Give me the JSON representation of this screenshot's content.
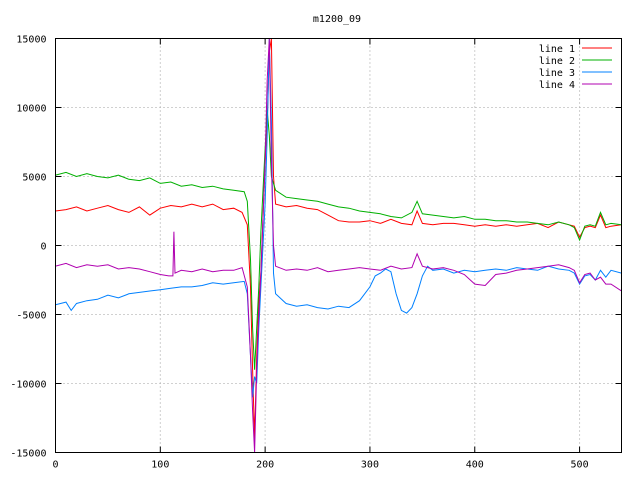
{
  "chart_data": {
    "type": "line",
    "title": "m1200_09",
    "xlabel": "",
    "ylabel": "",
    "xlim": [
      0,
      540
    ],
    "ylim": [
      -15000,
      15000
    ],
    "xticks": [
      0,
      100,
      200,
      300,
      400,
      500
    ],
    "yticks": [
      -15000,
      -10000,
      -5000,
      0,
      5000,
      10000,
      15000
    ],
    "grid": true,
    "legend_position": "top-right",
    "series": [
      {
        "name": "line 1",
        "color": "#ff0000",
        "points": [
          [
            0,
            2500
          ],
          [
            10,
            2600
          ],
          [
            20,
            2800
          ],
          [
            30,
            2500
          ],
          [
            40,
            2700
          ],
          [
            50,
            2900
          ],
          [
            60,
            2600
          ],
          [
            70,
            2400
          ],
          [
            80,
            2800
          ],
          [
            90,
            2200
          ],
          [
            100,
            2700
          ],
          [
            110,
            2900
          ],
          [
            120,
            2800
          ],
          [
            130,
            3000
          ],
          [
            140,
            2800
          ],
          [
            150,
            3000
          ],
          [
            160,
            2600
          ],
          [
            170,
            2700
          ],
          [
            178,
            2400
          ],
          [
            183,
            1500
          ],
          [
            186,
            -3000
          ],
          [
            188,
            -9000
          ],
          [
            190,
            -14000
          ],
          [
            192,
            -8000
          ],
          [
            194,
            -4000
          ],
          [
            196,
            -2000
          ],
          [
            198,
            2000
          ],
          [
            200,
            6000
          ],
          [
            202,
            9000
          ],
          [
            204,
            14000
          ],
          [
            206,
            15000
          ],
          [
            208,
            5000
          ],
          [
            210,
            3000
          ],
          [
            220,
            2800
          ],
          [
            230,
            2900
          ],
          [
            240,
            2700
          ],
          [
            250,
            2600
          ],
          [
            260,
            2200
          ],
          [
            270,
            1800
          ],
          [
            280,
            1700
          ],
          [
            290,
            1700
          ],
          [
            300,
            1800
          ],
          [
            310,
            1600
          ],
          [
            320,
            1900
          ],
          [
            330,
            1600
          ],
          [
            340,
            1500
          ],
          [
            345,
            2500
          ],
          [
            350,
            1600
          ],
          [
            360,
            1500
          ],
          [
            370,
            1600
          ],
          [
            380,
            1600
          ],
          [
            390,
            1500
          ],
          [
            400,
            1400
          ],
          [
            410,
            1500
          ],
          [
            420,
            1400
          ],
          [
            430,
            1500
          ],
          [
            440,
            1400
          ],
          [
            450,
            1500
          ],
          [
            460,
            1600
          ],
          [
            470,
            1300
          ],
          [
            480,
            1700
          ],
          [
            490,
            1500
          ],
          [
            495,
            1400
          ],
          [
            500,
            600
          ],
          [
            505,
            1300
          ],
          [
            510,
            1400
          ],
          [
            515,
            1300
          ],
          [
            520,
            2200
          ],
          [
            525,
            1300
          ],
          [
            530,
            1400
          ],
          [
            540,
            1500
          ]
        ]
      },
      {
        "name": "line 2",
        "color": "#00b000",
        "points": [
          [
            0,
            5100
          ],
          [
            10,
            5300
          ],
          [
            20,
            5000
          ],
          [
            30,
            5200
          ],
          [
            40,
            5000
          ],
          [
            50,
            4900
          ],
          [
            60,
            5100
          ],
          [
            70,
            4800
          ],
          [
            80,
            4700
          ],
          [
            90,
            4900
          ],
          [
            100,
            4500
          ],
          [
            110,
            4600
          ],
          [
            120,
            4300
          ],
          [
            130,
            4400
          ],
          [
            140,
            4200
          ],
          [
            150,
            4300
          ],
          [
            160,
            4100
          ],
          [
            170,
            4000
          ],
          [
            180,
            3900
          ],
          [
            183,
            3200
          ],
          [
            186,
            -1000
          ],
          [
            188,
            -6000
          ],
          [
            190,
            -9000
          ],
          [
            192,
            -6000
          ],
          [
            194,
            -3000
          ],
          [
            196,
            1000
          ],
          [
            198,
            4000
          ],
          [
            200,
            7000
          ],
          [
            202,
            9800
          ],
          [
            204,
            8000
          ],
          [
            206,
            5000
          ],
          [
            210,
            4000
          ],
          [
            220,
            3500
          ],
          [
            230,
            3400
          ],
          [
            240,
            3300
          ],
          [
            250,
            3200
          ],
          [
            260,
            3000
          ],
          [
            270,
            2800
          ],
          [
            280,
            2700
          ],
          [
            290,
            2500
          ],
          [
            300,
            2400
          ],
          [
            310,
            2300
          ],
          [
            320,
            2100
          ],
          [
            330,
            2000
          ],
          [
            340,
            2400
          ],
          [
            345,
            3200
          ],
          [
            350,
            2300
          ],
          [
            360,
            2200
          ],
          [
            370,
            2100
          ],
          [
            380,
            2000
          ],
          [
            390,
            2100
          ],
          [
            400,
            1900
          ],
          [
            410,
            1900
          ],
          [
            420,
            1800
          ],
          [
            430,
            1800
          ],
          [
            440,
            1700
          ],
          [
            450,
            1700
          ],
          [
            460,
            1600
          ],
          [
            470,
            1500
          ],
          [
            480,
            1700
          ],
          [
            490,
            1500
          ],
          [
            495,
            1300
          ],
          [
            500,
            400
          ],
          [
            505,
            1400
          ],
          [
            510,
            1500
          ],
          [
            515,
            1400
          ],
          [
            520,
            2400
          ],
          [
            525,
            1500
          ],
          [
            530,
            1600
          ],
          [
            540,
            1500
          ]
        ]
      },
      {
        "name": "line 3",
        "color": "#0080ff",
        "points": [
          [
            0,
            -4300
          ],
          [
            10,
            -4100
          ],
          [
            15,
            -4700
          ],
          [
            20,
            -4200
          ],
          [
            30,
            -4000
          ],
          [
            40,
            -3900
          ],
          [
            50,
            -3600
          ],
          [
            60,
            -3800
          ],
          [
            70,
            -3500
          ],
          [
            80,
            -3400
          ],
          [
            90,
            -3300
          ],
          [
            100,
            -3200
          ],
          [
            110,
            -3100
          ],
          [
            120,
            -3000
          ],
          [
            130,
            -3000
          ],
          [
            140,
            -2900
          ],
          [
            150,
            -2700
          ],
          [
            160,
            -2800
          ],
          [
            170,
            -2700
          ],
          [
            180,
            -2600
          ],
          [
            183,
            -3500
          ],
          [
            186,
            -8000
          ],
          [
            188,
            -11000
          ],
          [
            190,
            -9500
          ],
          [
            192,
            -10000
          ],
          [
            194,
            -6000
          ],
          [
            196,
            -3000
          ],
          [
            198,
            0
          ],
          [
            200,
            3000
          ],
          [
            202,
            8000
          ],
          [
            204,
            15000
          ],
          [
            206,
            9000
          ],
          [
            208,
            -2000
          ],
          [
            210,
            -3500
          ],
          [
            220,
            -4200
          ],
          [
            230,
            -4400
          ],
          [
            240,
            -4300
          ],
          [
            250,
            -4500
          ],
          [
            260,
            -4600
          ],
          [
            270,
            -4400
          ],
          [
            280,
            -4500
          ],
          [
            290,
            -4000
          ],
          [
            300,
            -3000
          ],
          [
            305,
            -2200
          ],
          [
            310,
            -2000
          ],
          [
            315,
            -1700
          ],
          [
            320,
            -1900
          ],
          [
            325,
            -3500
          ],
          [
            330,
            -4700
          ],
          [
            335,
            -4900
          ],
          [
            340,
            -4500
          ],
          [
            345,
            -3500
          ],
          [
            350,
            -2200
          ],
          [
            355,
            -1500
          ],
          [
            360,
            -1800
          ],
          [
            370,
            -1700
          ],
          [
            380,
            -2000
          ],
          [
            390,
            -1800
          ],
          [
            400,
            -1900
          ],
          [
            410,
            -1800
          ],
          [
            420,
            -1700
          ],
          [
            430,
            -1800
          ],
          [
            440,
            -1600
          ],
          [
            450,
            -1700
          ],
          [
            460,
            -1800
          ],
          [
            470,
            -1500
          ],
          [
            480,
            -1700
          ],
          [
            490,
            -1800
          ],
          [
            495,
            -2000
          ],
          [
            500,
            -2800
          ],
          [
            505,
            -2200
          ],
          [
            510,
            -2100
          ],
          [
            515,
            -2500
          ],
          [
            520,
            -1800
          ],
          [
            525,
            -2300
          ],
          [
            530,
            -1800
          ],
          [
            540,
            -2000
          ]
        ]
      },
      {
        "name": "line 4",
        "color": "#b000b0",
        "points": [
          [
            0,
            -1500
          ],
          [
            10,
            -1300
          ],
          [
            20,
            -1600
          ],
          [
            30,
            -1400
          ],
          [
            40,
            -1500
          ],
          [
            50,
            -1400
          ],
          [
            60,
            -1700
          ],
          [
            70,
            -1600
          ],
          [
            80,
            -1700
          ],
          [
            90,
            -1900
          ],
          [
            100,
            -2100
          ],
          [
            108,
            -2200
          ],
          [
            112,
            -2200
          ],
          [
            113,
            1000
          ],
          [
            114,
            -2000
          ],
          [
            120,
            -1800
          ],
          [
            130,
            -1900
          ],
          [
            140,
            -1700
          ],
          [
            150,
            -1900
          ],
          [
            160,
            -1800
          ],
          [
            170,
            -1800
          ],
          [
            178,
            -1600
          ],
          [
            183,
            -3000
          ],
          [
            186,
            -8000
          ],
          [
            188,
            -12000
          ],
          [
            190,
            -15000
          ],
          [
            192,
            -9000
          ],
          [
            194,
            -5000
          ],
          [
            196,
            -2000
          ],
          [
            198,
            2000
          ],
          [
            200,
            6000
          ],
          [
            202,
            12000
          ],
          [
            204,
            15000
          ],
          [
            206,
            6000
          ],
          [
            208,
            0
          ],
          [
            210,
            -1500
          ],
          [
            220,
            -1800
          ],
          [
            230,
            -1700
          ],
          [
            240,
            -1800
          ],
          [
            250,
            -1600
          ],
          [
            260,
            -1900
          ],
          [
            270,
            -1800
          ],
          [
            280,
            -1700
          ],
          [
            290,
            -1600
          ],
          [
            300,
            -1700
          ],
          [
            310,
            -1800
          ],
          [
            320,
            -1500
          ],
          [
            330,
            -1700
          ],
          [
            340,
            -1600
          ],
          [
            345,
            -600
          ],
          [
            350,
            -1500
          ],
          [
            360,
            -1700
          ],
          [
            370,
            -1600
          ],
          [
            380,
            -1800
          ],
          [
            390,
            -2100
          ],
          [
            400,
            -2800
          ],
          [
            410,
            -2900
          ],
          [
            420,
            -2100
          ],
          [
            430,
            -2000
          ],
          [
            440,
            -1800
          ],
          [
            450,
            -1700
          ],
          [
            460,
            -1600
          ],
          [
            470,
            -1500
          ],
          [
            480,
            -1400
          ],
          [
            490,
            -1600
          ],
          [
            495,
            -1800
          ],
          [
            500,
            -2700
          ],
          [
            505,
            -2100
          ],
          [
            510,
            -2000
          ],
          [
            515,
            -2500
          ],
          [
            520,
            -2300
          ],
          [
            525,
            -2800
          ],
          [
            530,
            -2800
          ],
          [
            540,
            -3300
          ]
        ]
      }
    ]
  }
}
